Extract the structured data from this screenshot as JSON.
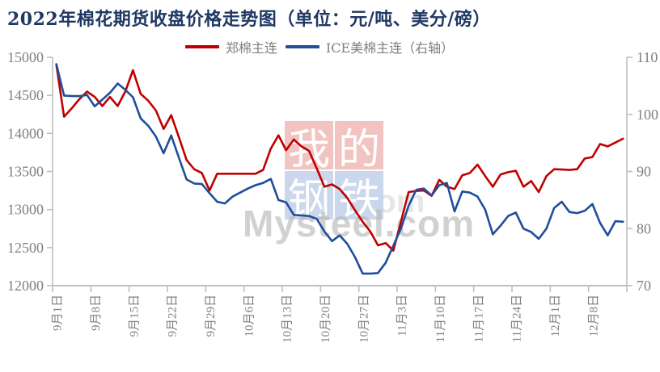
{
  "title": {
    "text": "2022年棉花期货收盘价格走势图（单位：元/吨、美分/磅）",
    "color": "#1f3864"
  },
  "legend": {
    "items": [
      {
        "label": "郑棉主连",
        "color": "#c00000"
      },
      {
        "label": "ICE美棉主连（右轴）",
        "color": "#1f4e9b"
      }
    ]
  },
  "watermark": {
    "main_text": "Mysteel.com",
    "echo_text": ".com",
    "blocks": [
      {
        "char": "我",
        "bg": "#f0c0bd"
      },
      {
        "char": "的",
        "bg": "#f0c0bd"
      },
      {
        "char": "钢",
        "bg": "#c6d4eb"
      },
      {
        "char": "铁",
        "bg": "#c6d4eb"
      }
    ]
  },
  "chart_data": {
    "type": "line",
    "title": "2022年棉花期货收盘价格走势图（单位：元/吨、美分/磅）",
    "x_note": "daily trading days from 2022-09-01 to 2022-12-14, weekly tick labels",
    "x_labels": [
      "9月1日",
      "9月8日",
      "9月15日",
      "9月22日",
      "9月29日",
      "10月6日",
      "10月13日",
      "10月20日",
      "10月27日",
      "11月3日",
      "11月10日",
      "11月17日",
      "11月24日",
      "12月1日",
      "12月8日"
    ],
    "x_label_point_index": [
      0,
      5,
      10,
      15,
      20,
      25,
      30,
      35,
      40,
      45,
      50,
      55,
      60,
      65,
      70
    ],
    "left_axis": {
      "min": 12000,
      "max": 15000,
      "step": 500,
      "tick_labels": [
        "15000",
        "14500",
        "14000",
        "13500",
        "13000",
        "12500",
        "12000"
      ]
    },
    "right_axis": {
      "min": 70,
      "max": 110,
      "step": 10,
      "tick_labels": [
        "110",
        "100",
        "90",
        "80",
        "70"
      ]
    },
    "grid": false,
    "legend_position": "top-center",
    "series": [
      {
        "name": "郑棉主连",
        "axis": "left",
        "color": "#c00000",
        "unit": "元/吨",
        "values": [
          14900,
          14220,
          14330,
          14450,
          14550,
          14480,
          14360,
          14480,
          14360,
          14550,
          14830,
          14520,
          14430,
          14300,
          14060,
          14240,
          13950,
          13650,
          13530,
          13480,
          13250,
          13470,
          13470,
          13470,
          13470,
          13470,
          13470,
          13520,
          13800,
          13975,
          13780,
          13920,
          13830,
          13770,
          13540,
          13300,
          13330,
          13270,
          13150,
          12990,
          12840,
          12710,
          12530,
          12560,
          12460,
          12840,
          13230,
          13245,
          13250,
          13180,
          13390,
          13300,
          13270,
          13450,
          13480,
          13590,
          13440,
          13300,
          13460,
          13490,
          13510,
          13300,
          13375,
          13230,
          13440,
          13530,
          13525,
          13520,
          13530,
          13670,
          13690,
          13860,
          13830,
          13880,
          13930
        ]
      },
      {
        "name": "ICE美棉主连（右轴）",
        "axis": "right",
        "color": "#1f4e9b",
        "unit": "美分/磅",
        "values": [
          108.8,
          103.3,
          103.2,
          103.2,
          103.4,
          101.4,
          102.6,
          103.8,
          105.4,
          104.3,
          103.0,
          99.3,
          98.0,
          96.1,
          93.2,
          96.3,
          92.4,
          88.6,
          87.9,
          87.8,
          86.2,
          84.7,
          84.4,
          85.6,
          86.3,
          87.0,
          87.6,
          88.0,
          88.7,
          85.0,
          84.6,
          82.4,
          82.3,
          82.2,
          81.7,
          79.5,
          77.8,
          78.8,
          77.3,
          75.0,
          72.1,
          72.1,
          72.2,
          74.0,
          77.0,
          80.0,
          84.0,
          86.8,
          87.0,
          85.8,
          87.6,
          88.0,
          83.0,
          86.5,
          86.3,
          85.6,
          83.3,
          79.0,
          80.5,
          82.2,
          82.8,
          80.0,
          79.4,
          78.2,
          80.0,
          83.6,
          84.7,
          82.9,
          82.7,
          83.1,
          84.3,
          81.0,
          78.8,
          81.3,
          81.2
        ]
      }
    ],
    "style": {
      "axis_line_color": "#bfbfbf",
      "tick_label_color": "#808080",
      "line_width": 2.6
    }
  }
}
